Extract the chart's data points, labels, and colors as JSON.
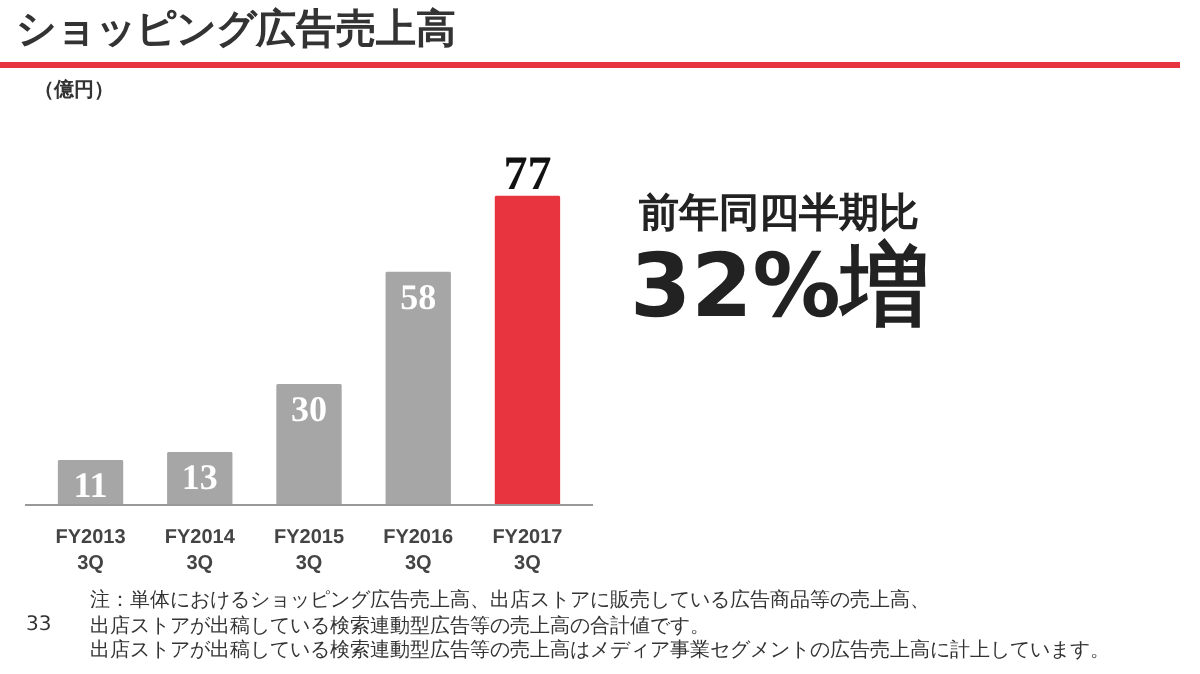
{
  "chart_data": {
    "type": "bar",
    "title": "ショッピング広告売上高",
    "ylabel": "（億円）",
    "categories": [
      "FY2013\n3Q",
      "FY2014\n3Q",
      "FY2015\n3Q",
      "FY2016\n3Q",
      "FY2017\n3Q"
    ],
    "values": [
      11,
      13,
      30,
      58,
      77
    ],
    "colors": [
      "#a6a6a6",
      "#a6a6a6",
      "#a6a6a6",
      "#a6a6a6",
      "#e8343e"
    ],
    "data_labels": true,
    "tick_labels": "x",
    "grid": false,
    "annotations": [
      "前年同四半期比",
      "32%増",
      "33",
      "注：単体におけるショッピング広告売上高、出店ストアに販売している広告商品等の売上高、",
      "出店ストアが出稿している検索連動型広告等の売上高の合計値です。",
      "出店ストアが出稿している検索連動型広告等の売上高はメディア事業セグメントの広告売上高に計上しています。"
    ]
  }
}
